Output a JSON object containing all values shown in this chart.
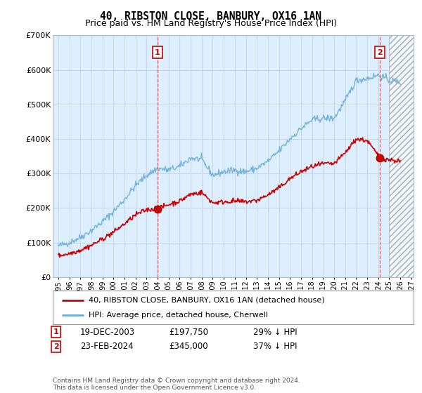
{
  "title": "40, RIBSTON CLOSE, BANBURY, OX16 1AN",
  "subtitle": "Price paid vs. HM Land Registry's House Price Index (HPI)",
  "ylim": [
    0,
    700000
  ],
  "yticks": [
    0,
    100000,
    200000,
    300000,
    400000,
    500000,
    600000,
    700000
  ],
  "ytick_labels": [
    "£0",
    "£100K",
    "£200K",
    "£300K",
    "£400K",
    "£500K",
    "£600K",
    "£700K"
  ],
  "xlim_start": 1994.5,
  "xlim_end": 2027.2,
  "hpi_color": "#6aaed6",
  "price_color": "#cc0000",
  "marker_color": "#cc0000",
  "plot_bg_color": "#ddeeff",
  "sale1_x": 2004.0,
  "sale1_y": 197750,
  "sale2_x": 2024.15,
  "sale2_y": 345000,
  "vline_color": "#dd4444",
  "hatch_start": 2025.0,
  "legend_line1": "40, RIBSTON CLOSE, BANBURY, OX16 1AN (detached house)",
  "legend_line2": "HPI: Average price, detached house, Cherwell",
  "table_rows": [
    {
      "num": "1",
      "date": "19-DEC-2003",
      "price": "£197,750",
      "note": "29% ↓ HPI"
    },
    {
      "num": "2",
      "date": "23-FEB-2024",
      "price": "£345,000",
      "note": "37% ↓ HPI"
    }
  ],
  "footer": "Contains HM Land Registry data © Crown copyright and database right 2024.\nThis data is licensed under the Open Government Licence v3.0.",
  "background_color": "#ffffff",
  "grid_color": "#c8d8e8",
  "title_fontsize": 10.5,
  "subtitle_fontsize": 9
}
